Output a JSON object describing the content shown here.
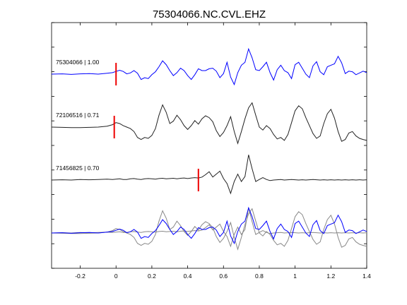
{
  "chart_data": {
    "type": "line",
    "title": "75304066.NC.CVL.EHZ",
    "xlabel": "",
    "ylabel": "",
    "xlim": [
      -0.36,
      1.4
    ],
    "x_ticks": [
      -0.2,
      0,
      0.2,
      0.4,
      0.6,
      0.8,
      1,
      1.2,
      1.4
    ],
    "x_tick_labels": [
      "-0.2",
      "0",
      "0.2",
      "0.4",
      "0.6",
      "0.8",
      "1",
      "1.2",
      "1.4"
    ],
    "grid": false,
    "colors": {
      "reference": "#0000ff",
      "other": "#222222",
      "overlay_other": "#888888",
      "pick": "#ee0000"
    },
    "traces": [
      {
        "label": "75304066 | 1.00",
        "id": "75304066",
        "correlation": 1.0,
        "color": "#0000ff",
        "pick_time": 0.0,
        "x": [
          -0.36,
          -0.3,
          -0.25,
          -0.2,
          -0.15,
          -0.1,
          -0.05,
          -0.02,
          0,
          0.02,
          0.04,
          0.06,
          0.08,
          0.1,
          0.12,
          0.14,
          0.16,
          0.18,
          0.2,
          0.22,
          0.24,
          0.26,
          0.28,
          0.3,
          0.32,
          0.34,
          0.36,
          0.38,
          0.4,
          0.42,
          0.44,
          0.46,
          0.48,
          0.5,
          0.52,
          0.54,
          0.56,
          0.58,
          0.6,
          0.62,
          0.64,
          0.66,
          0.68,
          0.7,
          0.72,
          0.74,
          0.76,
          0.78,
          0.8,
          0.82,
          0.84,
          0.86,
          0.88,
          0.9,
          0.92,
          0.94,
          0.96,
          0.98,
          1.0,
          1.02,
          1.04,
          1.06,
          1.08,
          1.1,
          1.12,
          1.14,
          1.16,
          1.18,
          1.2,
          1.22,
          1.24,
          1.26,
          1.28,
          1.3,
          1.32,
          1.34,
          1.36,
          1.38,
          1.4
        ],
        "y": [
          0.0,
          0.01,
          -0.01,
          0.01,
          0.02,
          0.0,
          0.03,
          0.05,
          0.09,
          0.13,
          0.09,
          0.01,
          0.04,
          0.12,
          0.03,
          -0.18,
          -0.12,
          -0.15,
          -0.02,
          0.08,
          0.25,
          0.45,
          0.32,
          0.12,
          -0.05,
          0.05,
          0.2,
          0.12,
          -0.05,
          -0.18,
          -0.02,
          0.18,
          0.12,
          0.12,
          0.18,
          0.2,
          0.1,
          -0.12,
          0.02,
          0.4,
          -0.1,
          -0.35,
          0.05,
          0.3,
          0.4,
          0.85,
          0.55,
          0.15,
          0.12,
          0.25,
          0.4,
          0.05,
          -0.2,
          0.15,
          0.3,
          0.12,
          0.05,
          -0.15,
          0.32,
          0.4,
          0.2,
          0.0,
          -0.12,
          0.28,
          0.42,
          0.08,
          -0.02,
          0.25,
          0.3,
          0.35,
          0.6,
          0.38,
          0.02,
          0.1,
          0.08,
          -0.02,
          0.04,
          0.1,
          0.05
        ]
      },
      {
        "label": "72106516 | 0.71",
        "id": "72106516",
        "correlation": 0.71,
        "color": "#222222",
        "pick_time": -0.01,
        "x": [
          -0.36,
          -0.3,
          -0.25,
          -0.2,
          -0.15,
          -0.1,
          -0.05,
          -0.02,
          0,
          0.02,
          0.04,
          0.06,
          0.08,
          0.1,
          0.12,
          0.14,
          0.16,
          0.18,
          0.2,
          0.22,
          0.24,
          0.26,
          0.28,
          0.3,
          0.32,
          0.34,
          0.36,
          0.38,
          0.4,
          0.42,
          0.44,
          0.46,
          0.48,
          0.5,
          0.52,
          0.54,
          0.56,
          0.58,
          0.6,
          0.62,
          0.64,
          0.66,
          0.68,
          0.7,
          0.72,
          0.74,
          0.76,
          0.78,
          0.8,
          0.82,
          0.84,
          0.86,
          0.88,
          0.9,
          0.92,
          0.94,
          0.96,
          0.98,
          1.0,
          1.02,
          1.04,
          1.06,
          1.08,
          1.1,
          1.12,
          1.14,
          1.16,
          1.18,
          1.2,
          1.22,
          1.24,
          1.26,
          1.28,
          1.3,
          1.32,
          1.34,
          1.36,
          1.38,
          1.4
        ],
        "y": [
          0.0,
          -0.01,
          -0.02,
          -0.02,
          -0.01,
          0.0,
          0.03,
          0.08,
          0.15,
          0.12,
          0.05,
          0.0,
          -0.05,
          -0.15,
          -0.35,
          -0.42,
          -0.35,
          -0.38,
          -0.28,
          -0.05,
          0.4,
          0.75,
          0.5,
          0.12,
          0.2,
          0.4,
          0.25,
          0.05,
          -0.08,
          0.05,
          0.22,
          0.1,
          0.28,
          0.38,
          0.32,
          0.18,
          -0.12,
          -0.32,
          -0.18,
          0.05,
          0.35,
          -0.15,
          -0.55,
          -0.15,
          0.28,
          0.65,
          0.82,
          0.4,
          0.0,
          -0.1,
          0.05,
          -0.05,
          -0.25,
          -0.4,
          -0.35,
          -0.45,
          -0.25,
          0.15,
          0.55,
          0.72,
          0.62,
          0.32,
          0.05,
          -0.22,
          -0.38,
          -0.3,
          0.12,
          0.45,
          0.6,
          0.3,
          -0.15,
          -0.48,
          -0.42,
          -0.2,
          -0.15,
          -0.3,
          -0.38,
          -0.42,
          -0.45
        ]
      },
      {
        "label": "71456825 | 0.70",
        "id": "71456825",
        "correlation": 0.7,
        "color": "#222222",
        "pick_time": 0.46,
        "x": [
          -0.36,
          -0.3,
          -0.25,
          -0.2,
          -0.15,
          -0.1,
          -0.05,
          -0.02,
          0,
          0.02,
          0.04,
          0.06,
          0.08,
          0.1,
          0.12,
          0.14,
          0.16,
          0.18,
          0.2,
          0.22,
          0.24,
          0.26,
          0.28,
          0.3,
          0.32,
          0.34,
          0.36,
          0.38,
          0.4,
          0.42,
          0.44,
          0.46,
          0.48,
          0.5,
          0.52,
          0.54,
          0.56,
          0.58,
          0.6,
          0.62,
          0.64,
          0.66,
          0.68,
          0.7,
          0.72,
          0.74,
          0.76,
          0.78,
          0.8,
          0.82,
          0.84,
          0.86,
          0.88,
          0.9,
          0.92,
          0.94,
          0.96,
          0.98,
          1.0,
          1.02,
          1.04,
          1.06,
          1.08,
          1.1,
          1.12,
          1.14,
          1.16,
          1.18,
          1.2,
          1.22,
          1.24,
          1.26,
          1.28,
          1.3,
          1.32,
          1.34,
          1.36,
          1.38,
          1.4
        ],
        "y": [
          0.0,
          0.01,
          0.0,
          0.02,
          0.01,
          0.02,
          0.03,
          0.02,
          0.03,
          0.04,
          0.02,
          0.02,
          0.04,
          0.05,
          0.03,
          0.02,
          0.04,
          0.05,
          0.04,
          0.03,
          0.05,
          0.06,
          0.04,
          0.05,
          0.06,
          0.04,
          0.06,
          0.07,
          0.05,
          0.07,
          0.08,
          0.07,
          0.1,
          0.18,
          0.28,
          0.1,
          0.2,
          0.3,
          0.05,
          -0.12,
          -0.45,
          -0.05,
          0.2,
          -0.05,
          0.12,
          0.85,
          0.38,
          -0.05,
          0.02,
          0.08,
          0.02,
          -0.02,
          0.0,
          0.01,
          0.02,
          0.0,
          0.01,
          0.02,
          0.01,
          0.0,
          0.01,
          0.0,
          0.01,
          0.02,
          0.01,
          0.0,
          0.01,
          0.0,
          0.01,
          0.0,
          0.01,
          0.0,
          0.01,
          0.0,
          0.01,
          0.0,
          0.01,
          0.0,
          0.01
        ]
      }
    ]
  }
}
